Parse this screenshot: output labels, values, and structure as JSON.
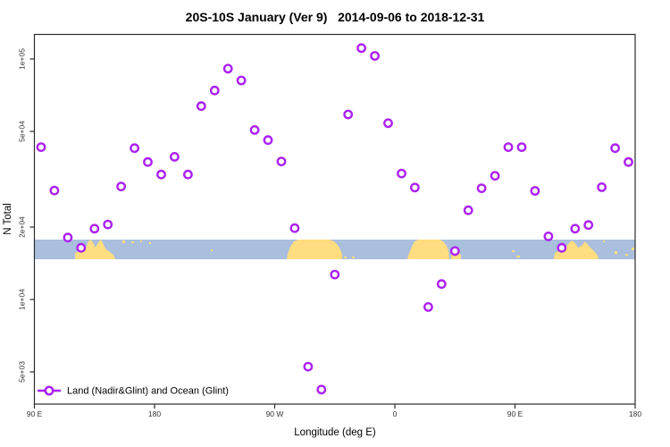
{
  "title": "20S-10S January (Ver 9)   2014-09-06 to 2018-12-31",
  "legend": {
    "label": "Land (Nadir&Glint) and Ocean (Glint)"
  },
  "colors": {
    "marker": "#ab20f0",
    "frame": "#2b2b2b",
    "background": "#ffffff"
  },
  "chart_data": {
    "type": "scatter",
    "title": "20S-10S January (Ver 9)   2014-09-06 to 2018-12-31",
    "xlabel": "Longitude (deg E)",
    "ylabel": "N Total",
    "x_scale": "degrees eastward from 90E, wrapping through 180, 90W, 0, 90E to 180",
    "x_range": [
      90,
      540
    ],
    "x_ticks": [
      {
        "pos": 90,
        "label": "90 E"
      },
      {
        "pos": 180,
        "label": "180"
      },
      {
        "pos": 270,
        "label": "90 W"
      },
      {
        "pos": 360,
        "label": "0"
      },
      {
        "pos": 450,
        "label": "90 E"
      },
      {
        "pos": 540,
        "label": "180"
      }
    ],
    "y_scale": "log",
    "y_range": [
      3500,
      130000
    ],
    "y_ticks": [
      {
        "value": 5000,
        "label": "5e+03"
      },
      {
        "value": 10000,
        "label": "1e+04"
      },
      {
        "value": 20000,
        "label": "2e+04"
      },
      {
        "value": 50000,
        "label": "5e+04"
      },
      {
        "value": 100000,
        "label": "1e+05"
      }
    ],
    "grid": false,
    "legend_position": "bottom-left",
    "series": [
      {
        "name": "Land (Nadir&Glint) and Ocean (Glint)",
        "marker": "open-circle",
        "color": "#ab20f0",
        "x": [
          95,
          105,
          115,
          125,
          135,
          145,
          155,
          165,
          175,
          185,
          195,
          205,
          215,
          225,
          235,
          245,
          255,
          265,
          275,
          285,
          295,
          305,
          315,
          325,
          335,
          345,
          355,
          365,
          375,
          385,
          395,
          405,
          415,
          425,
          435,
          445,
          455,
          465,
          475,
          485,
          495,
          505,
          515,
          525,
          535
        ],
        "y": [
          43000,
          28400,
          18100,
          16400,
          19700,
          20500,
          29500,
          42600,
          37300,
          33100,
          39200,
          33100,
          63700,
          74000,
          91200,
          81400,
          50700,
          46000,
          37500,
          19800,
          5260,
          4220,
          12700,
          58800,
          111000,
          103000,
          54100,
          33400,
          29200,
          9310,
          11600,
          15900,
          23500,
          29000,
          32700,
          43000,
          43000,
          28300,
          18300,
          16400,
          19700,
          20400,
          29300,
          42600,
          37300
        ]
      }
    ],
    "map_band": {
      "description": "world-map strip marking the 20S-10S latitude band",
      "ocean_color": "#aabedd",
      "land_color": "#ffdd80",
      "value_top": 17800,
      "value_bottom": 14600,
      "land_polygons": [
        {
          "name": "indonesia-n-australia",
          "points": [
            [
              84,
              290
            ],
            [
              84,
              283
            ],
            [
              89,
              281
            ],
            [
              93,
              282
            ],
            [
              96,
              277
            ],
            [
              99,
              270
            ],
            [
              102,
              268
            ],
            [
              105,
              273
            ],
            [
              107,
              277
            ],
            [
              110,
              271
            ],
            [
              113,
              268
            ],
            [
              116,
              274
            ],
            [
              119,
              279
            ],
            [
              123,
              282
            ],
            [
              127,
              285
            ],
            [
              129,
              290
            ]
          ]
        },
        {
          "name": "south-america",
          "points": [
            [
              321,
              290
            ],
            [
              322,
              284
            ],
            [
              325,
              276
            ],
            [
              329,
              270
            ],
            [
              334,
              268
            ],
            [
              369,
              268
            ],
            [
              374,
              270
            ],
            [
              378,
              274
            ],
            [
              381,
              279
            ],
            [
              383,
              285
            ],
            [
              383,
              290
            ]
          ]
        },
        {
          "name": "africa",
          "points": [
            [
              456,
              290
            ],
            [
              458,
              283
            ],
            [
              461,
              276
            ],
            [
              464,
              270
            ],
            [
              468,
              268
            ],
            [
              493,
              268
            ],
            [
              497,
              271
            ],
            [
              500,
              275
            ],
            [
              502,
              280
            ],
            [
              503,
              290
            ]
          ]
        },
        {
          "name": "madagascar",
          "points": [
            [
              505,
              290
            ],
            [
              505,
              284
            ],
            [
              507,
              280
            ],
            [
              511,
              279
            ],
            [
              514,
              282
            ],
            [
              516,
              286
            ],
            [
              516,
              290
            ]
          ]
        },
        {
          "name": "australia",
          "points": [
            [
              620,
              290
            ],
            [
              621,
              283
            ],
            [
              626,
              280
            ],
            [
              632,
              278
            ],
            [
              636,
              273
            ],
            [
              640,
              269
            ],
            [
              644,
              272
            ],
            [
              647,
              277
            ],
            [
              651,
              275
            ],
            [
              655,
              270
            ],
            [
              658,
              274
            ],
            [
              662,
              278
            ],
            [
              666,
              282
            ],
            [
              669,
              286
            ],
            [
              670,
              290
            ]
          ]
        }
      ],
      "islands": [
        [
          137,
          269,
          3,
          3
        ],
        [
          147,
          270,
          3,
          2
        ],
        [
          157,
          269,
          2,
          2
        ],
        [
          167,
          271,
          2,
          2
        ],
        [
          236,
          279,
          2,
          2
        ],
        [
          385,
          287,
          3,
          2
        ],
        [
          394,
          287,
          3,
          2
        ],
        [
          573,
          280,
          3,
          2
        ],
        [
          578,
          286,
          4,
          2
        ],
        [
          675,
          269,
          2,
          2
        ],
        [
          688,
          281,
          3,
          3
        ],
        [
          700,
          284,
          3,
          2
        ],
        [
          707,
          277,
          3,
          3
        ]
      ]
    }
  }
}
